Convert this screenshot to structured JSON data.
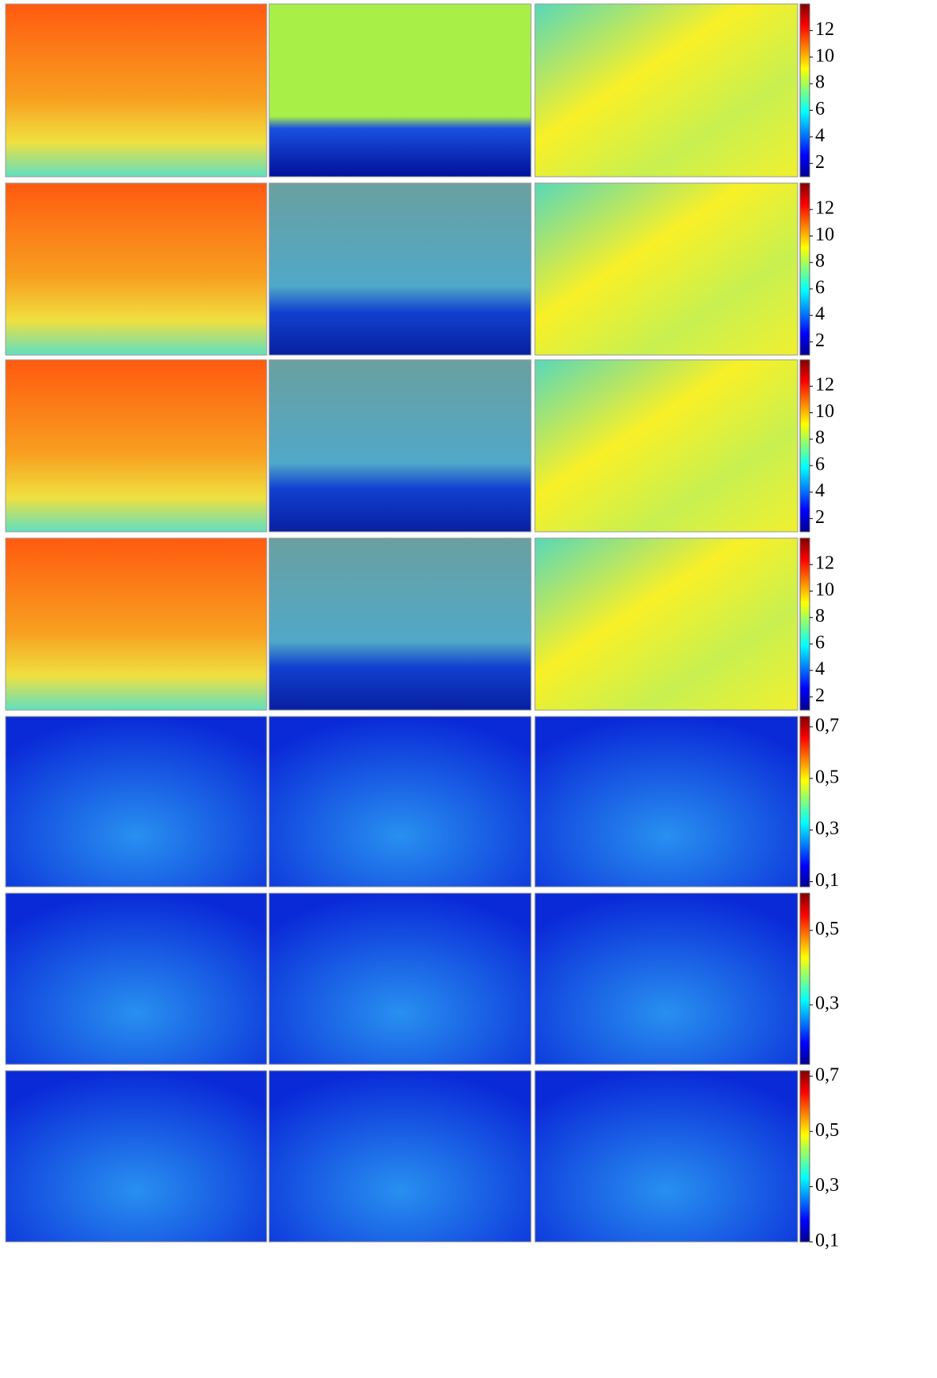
{
  "rows": [
    {
      "colorbar": {
        "lim": [
          1,
          14
        ],
        "ticks": [
          2,
          4,
          6,
          8,
          10,
          12
        ]
      }
    },
    {
      "colorbar": {
        "lim": [
          1,
          14
        ],
        "ticks": [
          2,
          4,
          6,
          8,
          10,
          12
        ]
      }
    },
    {
      "colorbar": {
        "lim": [
          1,
          14
        ],
        "ticks": [
          2,
          4,
          6,
          8,
          10,
          12
        ]
      }
    },
    {
      "colorbar": {
        "lim": [
          1,
          14
        ],
        "ticks": [
          2,
          4,
          6,
          8,
          10,
          12
        ]
      }
    },
    {
      "colorbar": {
        "lim": [
          0.08,
          0.74
        ],
        "ticks": [
          {
            "value": 0.1,
            "label": "0,1"
          },
          {
            "value": 0.3,
            "label": "0,3"
          },
          {
            "value": 0.5,
            "label": "0,5"
          },
          {
            "value": 0.7,
            "label": "0,7"
          }
        ]
      }
    },
    {
      "colorbar": {
        "lim": [
          0.14,
          0.6
        ],
        "ticks": [
          {
            "value": 0.3,
            "label": "0,3"
          },
          {
            "value": 0.5,
            "label": "0,5"
          }
        ]
      }
    },
    {
      "colorbar": {
        "lim": [
          0.1,
          0.72
        ],
        "ticks": [
          {
            "value": 0.1,
            "label": "0,1"
          },
          {
            "value": 0.3,
            "label": "0,3"
          },
          {
            "value": 0.5,
            "label": "0,5"
          },
          {
            "value": 0.7,
            "label": "0,7"
          }
        ]
      }
    }
  ]
}
